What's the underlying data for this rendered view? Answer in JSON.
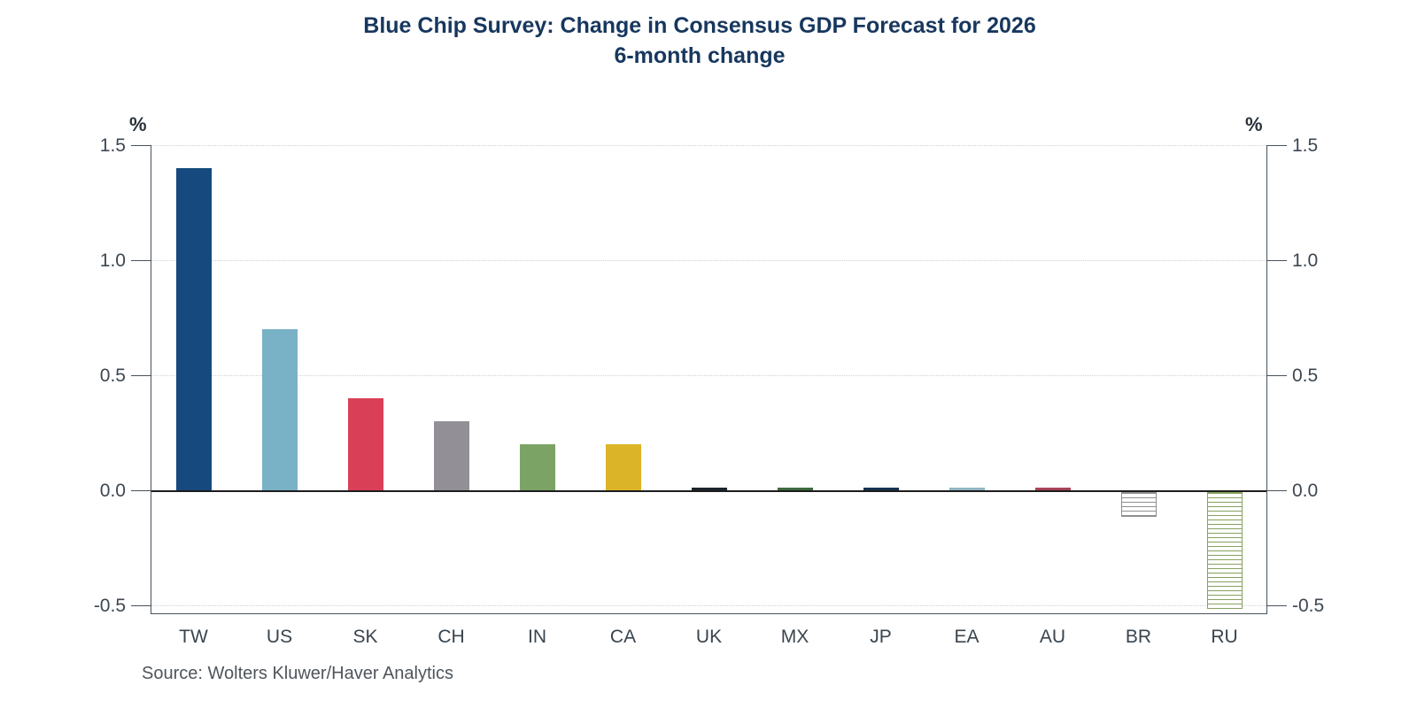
{
  "title": "Blue Chip Survey: Change in Consensus GDP Forecast for 2026",
  "subtitle": "6-month change",
  "source_label": "Source:  Wolters Kluwer/Haver Analytics",
  "axis_units": {
    "left": "%",
    "right": "%"
  },
  "chart_data": {
    "type": "bar",
    "title": "Blue Chip Survey: Change in Consensus GDP Forecast for 2026",
    "subtitle": "6-month change",
    "xlabel": "",
    "ylabel": "%",
    "ylim": [
      -0.62,
      1.5
    ],
    "yticks": [
      1.5,
      1.0,
      0.5,
      0.0,
      -0.5
    ],
    "ytick_labels": [
      "1.5",
      "1.0",
      "0.5",
      "0.0",
      "-0.5"
    ],
    "grid": "horizontal dotted at nonzero ticks, solid line at zero",
    "legend": "none",
    "categories": [
      "TW",
      "US",
      "SK",
      "CH",
      "IN",
      "CA",
      "UK",
      "MX",
      "JP",
      "EA",
      "AU",
      "BR",
      "RU"
    ],
    "values": [
      1.4,
      0.7,
      0.4,
      0.3,
      0.2,
      0.2,
      0.01,
      0.01,
      0.01,
      0.01,
      0.01,
      -0.1,
      -0.5
    ],
    "bar_colors": [
      "#164a7e",
      "#79b1c6",
      "#d94057",
      "#929096",
      "#7ba366",
      "#dcb427",
      "#1c242c",
      "#3e6b40",
      "#16324f",
      "#8fb5c2",
      "#a84256",
      "#ffffff",
      "#ffffff"
    ],
    "hatch_colors": [
      null,
      null,
      null,
      null,
      null,
      null,
      null,
      null,
      null,
      null,
      null,
      "#8f8f8f",
      "#86a15f"
    ],
    "hatch_style": "horizontal stripes on white",
    "source": "Source:  Wolters Kluwer/Haver Analytics"
  },
  "colors": {
    "title": "#17375e",
    "axis_line": "#47525c",
    "zero_line": "#1c1c1c",
    "gridline": "#cfcfcf",
    "tick_text": "#3d4751",
    "source_text": "#4e555b"
  }
}
